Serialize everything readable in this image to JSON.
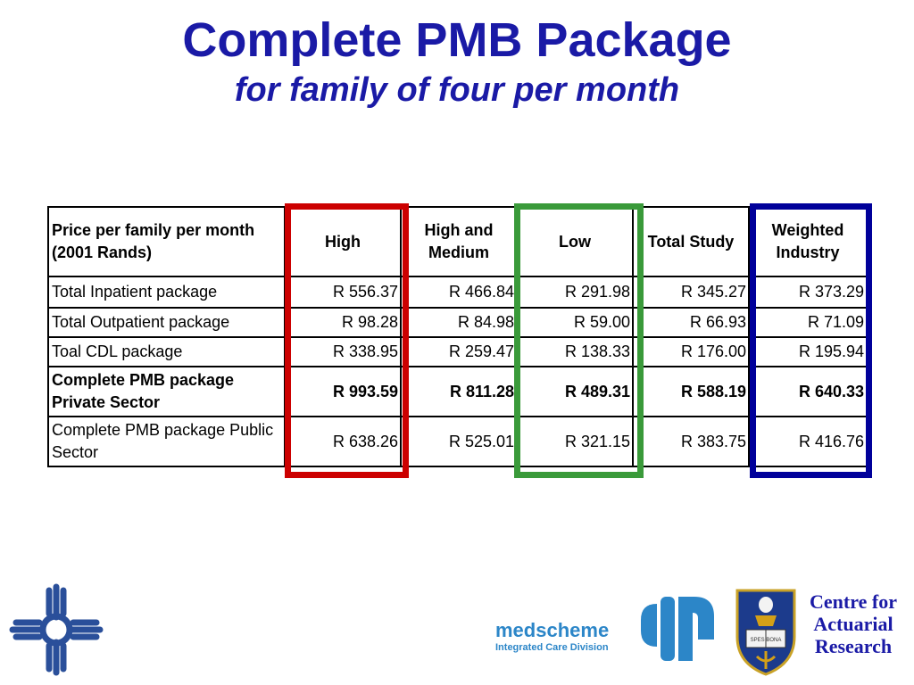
{
  "title": "Complete PMB Package",
  "subtitle": "for family of four per month",
  "table": {
    "header": {
      "label": "Price per family per month (2001 Rands)",
      "columns": [
        "High",
        "High and Medium",
        "Low",
        "Total Study",
        "Weighted Industry"
      ]
    },
    "rows": [
      {
        "label": "Total Inpatient package",
        "values": [
          "R 556.37",
          "R 466.84",
          "R 291.98",
          "R 345.27",
          "R 373.29"
        ]
      },
      {
        "label": "Total Outpatient package",
        "values": [
          "R 98.28",
          "R 84.98",
          "R 59.00",
          "R 66.93",
          "R 71.09"
        ]
      },
      {
        "label": "Toal CDL package",
        "values": [
          "R 338.95",
          "R 259.47",
          "R 138.33",
          "R 176.00",
          "R 195.94"
        ]
      },
      {
        "label": "Complete PMB package Private Sector",
        "values": [
          "R 993.59",
          "R 811.28",
          "R 489.31",
          "R 588.19",
          "R 640.33"
        ]
      },
      {
        "label": "Complete PMB package Public Sector",
        "values": [
          "R 638.26",
          "R 525.01",
          "R 321.15",
          "R 383.75",
          "R 416.76"
        ]
      }
    ]
  },
  "highlights": {
    "high_color": "#cc0000",
    "low_color": "#3a9a3a",
    "weighted_color": "#00009a"
  },
  "logos": {
    "medscheme_name": "medscheme",
    "medscheme_division": "Integrated Care Division",
    "crest_motto": "SPES BONA",
    "car_line1": "Centre for",
    "car_line2": "Actuarial",
    "car_line3": "Research"
  }
}
